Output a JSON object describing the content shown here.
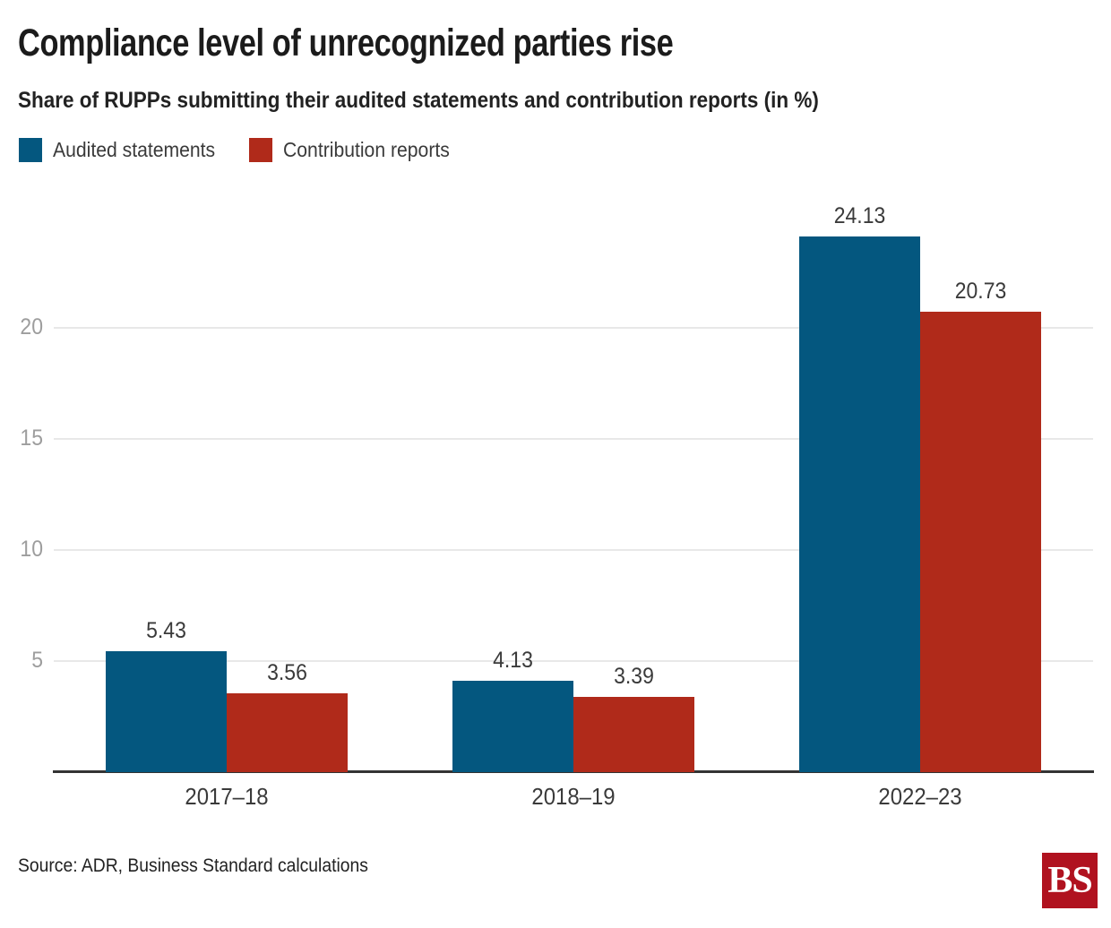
{
  "header": {
    "title": "Compliance level of unrecognized parties rise",
    "subtitle": "Share of RUPPs submitting their audited statements and contribution reports (in %)"
  },
  "legend": [
    {
      "label": "Audited statements",
      "color": "#04577f"
    },
    {
      "label": "Contribution reports",
      "color": "#b02a1a"
    }
  ],
  "chart_data": {
    "type": "bar",
    "categories": [
      "2017–18",
      "2018–19",
      "2022–23"
    ],
    "series": [
      {
        "name": "Audited statements",
        "color": "#04577f",
        "values": [
          5.43,
          4.13,
          24.13
        ]
      },
      {
        "name": "Contribution reports",
        "color": "#b02a1a",
        "values": [
          3.56,
          3.39,
          20.73
        ]
      }
    ],
    "yticks": [
      5,
      10,
      15,
      20
    ],
    "ylim": [
      0,
      25
    ],
    "grid": true,
    "legend_position": "top-left",
    "value_labels": true,
    "value_label_format": "2dp"
  },
  "footer": {
    "source": "Source: ADR, Business Standard calculations",
    "logo_text": "BS",
    "logo_bg": "#b0121f"
  }
}
